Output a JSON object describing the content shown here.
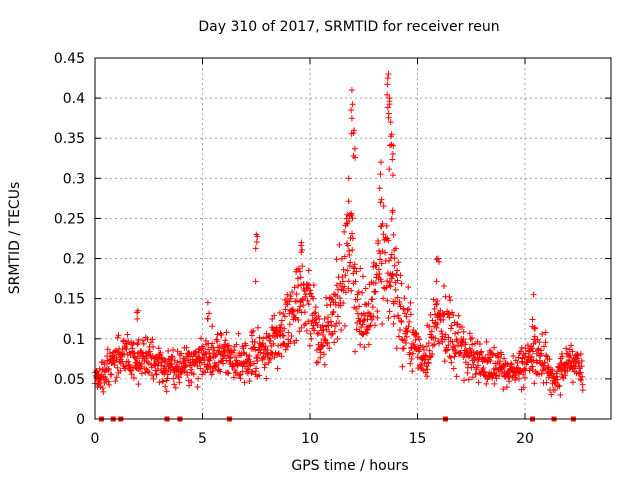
{
  "chart_data": {
    "type": "scatter",
    "title": "Day 310 of 2017, SRMTID for receiver reun",
    "xlabel": "GPS time / hours",
    "ylabel": "SRMTID / TECUs",
    "xlim": [
      0,
      24
    ],
    "ylim": [
      0,
      0.45
    ],
    "x_ticks": [
      0,
      5,
      10,
      15,
      20
    ],
    "y_ticks": [
      0,
      0.05,
      0.1,
      0.15,
      0.2,
      0.25,
      0.3,
      0.35,
      0.4,
      0.45
    ],
    "x_tick_labels": [
      "0",
      "5",
      "10",
      "15",
      "20"
    ],
    "y_tick_labels": [
      "0",
      "0.05",
      "0.1",
      "0.15",
      "0.2",
      "0.25",
      "0.3",
      "0.35",
      "0.4",
      "0.45"
    ],
    "grid": true,
    "marker": "plus",
    "color": "#ff0000",
    "baseline_gap_markers_x": [
      0.3,
      0.85,
      1.2,
      3.35,
      3.95,
      6.25,
      16.3,
      20.35,
      21.35,
      22.25
    ],
    "envelope": [
      {
        "x": 0.0,
        "y": 0.05
      },
      {
        "x": 0.5,
        "y": 0.06
      },
      {
        "x": 1.0,
        "y": 0.075
      },
      {
        "x": 1.5,
        "y": 0.08
      },
      {
        "x": 2.0,
        "y": 0.07
      },
      {
        "x": 2.5,
        "y": 0.08
      },
      {
        "x": 3.0,
        "y": 0.065
      },
      {
        "x": 3.5,
        "y": 0.06
      },
      {
        "x": 4.0,
        "y": 0.065
      },
      {
        "x": 4.5,
        "y": 0.07
      },
      {
        "x": 5.0,
        "y": 0.075
      },
      {
        "x": 5.5,
        "y": 0.08
      },
      {
        "x": 6.0,
        "y": 0.08
      },
      {
        "x": 6.5,
        "y": 0.075
      },
      {
        "x": 7.0,
        "y": 0.07
      },
      {
        "x": 7.5,
        "y": 0.08
      },
      {
        "x": 8.0,
        "y": 0.085
      },
      {
        "x": 8.5,
        "y": 0.1
      },
      {
        "x": 9.0,
        "y": 0.12
      },
      {
        "x": 9.5,
        "y": 0.15
      },
      {
        "x": 10.0,
        "y": 0.14
      },
      {
        "x": 10.5,
        "y": 0.1
      },
      {
        "x": 11.0,
        "y": 0.13
      },
      {
        "x": 11.5,
        "y": 0.17
      },
      {
        "x": 11.9,
        "y": 0.23
      },
      {
        "x": 12.2,
        "y": 0.14
      },
      {
        "x": 12.7,
        "y": 0.12
      },
      {
        "x": 13.1,
        "y": 0.18
      },
      {
        "x": 13.5,
        "y": 0.2
      },
      {
        "x": 13.8,
        "y": 0.16
      },
      {
        "x": 14.2,
        "y": 0.14
      },
      {
        "x": 14.7,
        "y": 0.1
      },
      {
        "x": 15.3,
        "y": 0.07
      },
      {
        "x": 15.9,
        "y": 0.12
      },
      {
        "x": 16.5,
        "y": 0.11
      },
      {
        "x": 17.0,
        "y": 0.09
      },
      {
        "x": 17.5,
        "y": 0.075
      },
      {
        "x": 18.0,
        "y": 0.07
      },
      {
        "x": 18.5,
        "y": 0.065
      },
      {
        "x": 19.0,
        "y": 0.06
      },
      {
        "x": 19.5,
        "y": 0.06
      },
      {
        "x": 20.0,
        "y": 0.07
      },
      {
        "x": 20.5,
        "y": 0.085
      },
      {
        "x": 21.0,
        "y": 0.07
      },
      {
        "x": 21.5,
        "y": 0.05
      },
      {
        "x": 22.0,
        "y": 0.075
      },
      {
        "x": 22.5,
        "y": 0.065
      },
      {
        "x": 22.7,
        "y": 0.06
      }
    ],
    "peaks": [
      {
        "x": 7.5,
        "y": 0.23
      },
      {
        "x": 9.6,
        "y": 0.22
      },
      {
        "x": 11.8,
        "y": 0.3
      },
      {
        "x": 11.95,
        "y": 0.41
      },
      {
        "x": 12.05,
        "y": 0.36
      },
      {
        "x": 13.3,
        "y": 0.32
      },
      {
        "x": 13.65,
        "y": 0.43
      },
      {
        "x": 13.7,
        "y": 0.4
      },
      {
        "x": 13.75,
        "y": 0.37
      },
      {
        "x": 13.8,
        "y": 0.355
      },
      {
        "x": 13.85,
        "y": 0.26
      },
      {
        "x": 15.95,
        "y": 0.2
      },
      {
        "x": 20.4,
        "y": 0.155
      },
      {
        "x": 5.25,
        "y": 0.145
      },
      {
        "x": 2.0,
        "y": 0.135
      }
    ]
  }
}
